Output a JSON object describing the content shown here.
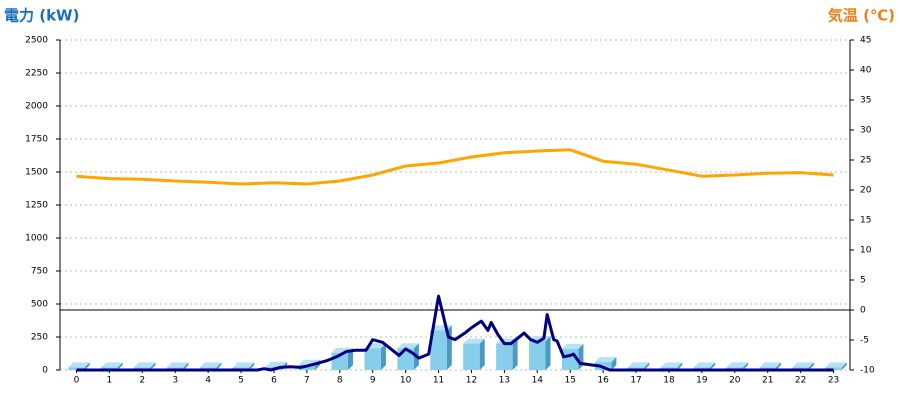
{
  "chart_data": {
    "type": "combo",
    "y_title": "電力 (kW)",
    "y2_title": "気温 (℃)",
    "categories": [
      "0",
      "1",
      "2",
      "3",
      "4",
      "5",
      "6",
      "7",
      "8",
      "9",
      "10",
      "11",
      "12",
      "13",
      "14",
      "15",
      "16",
      "17",
      "18",
      "19",
      "20",
      "21",
      "22",
      "23"
    ],
    "xlim": [
      -0.5,
      23.5
    ],
    "ylim": [
      0,
      2500
    ],
    "yticks": [
      0,
      250,
      500,
      750,
      1000,
      1250,
      1500,
      1750,
      2000,
      2250,
      2500
    ],
    "y2lim": [
      -10,
      45
    ],
    "y2ticks": [
      -10,
      -5,
      0,
      5,
      10,
      15,
      20,
      25,
      30,
      35,
      40,
      45
    ],
    "y2_baseline": 0,
    "grid": true,
    "series": [
      {
        "type": "bar",
        "color": "#87ceeb",
        "values": [
          20,
          20,
          20,
          20,
          20,
          20,
          25,
          40,
          130,
          165,
          165,
          300,
          200,
          200,
          220,
          160,
          60,
          20,
          20,
          20,
          20,
          20,
          20,
          20
        ]
      },
      {
        "type": "line",
        "axis": "y2",
        "color": "#ffa500",
        "values": [
          22.3,
          21.9,
          21.8,
          21.5,
          21.3,
          21.0,
          21.2,
          21.0,
          21.5,
          22.5,
          24.0,
          24.5,
          25.5,
          26.2,
          26.5,
          26.7,
          24.8,
          24.3,
          23.3,
          22.3,
          22.5,
          22.8,
          22.9,
          22.5
        ]
      },
      {
        "type": "line",
        "color": "#000080",
        "x": [
          0,
          5.5,
          5.7,
          5.9,
          6.2,
          6.5,
          6.8,
          7,
          7.3,
          7.6,
          7.9,
          8.2,
          8.5,
          8.8,
          9,
          9.3,
          9.6,
          9.8,
          10,
          10.2,
          10.4,
          10.7,
          11,
          11.3,
          11.5,
          11.8,
          12,
          12.3,
          12.5,
          12.6,
          12.8,
          13,
          13.2,
          13.4,
          13.6,
          13.8,
          14,
          14.2,
          14.3,
          14.5,
          14.6,
          14.8,
          15,
          15.1,
          15.3,
          15.6,
          15.9,
          16.2,
          23
        ],
        "values": [
          0,
          0,
          10,
          0,
          20,
          25,
          20,
          30,
          50,
          70,
          100,
          140,
          150,
          150,
          230,
          210,
          150,
          110,
          160,
          130,
          90,
          120,
          560,
          250,
          230,
          280,
          320,
          370,
          300,
          360,
          270,
          200,
          200,
          240,
          280,
          230,
          210,
          240,
          420,
          230,
          220,
          100,
          110,
          120,
          50,
          40,
          30,
          0,
          0
        ]
      }
    ]
  }
}
